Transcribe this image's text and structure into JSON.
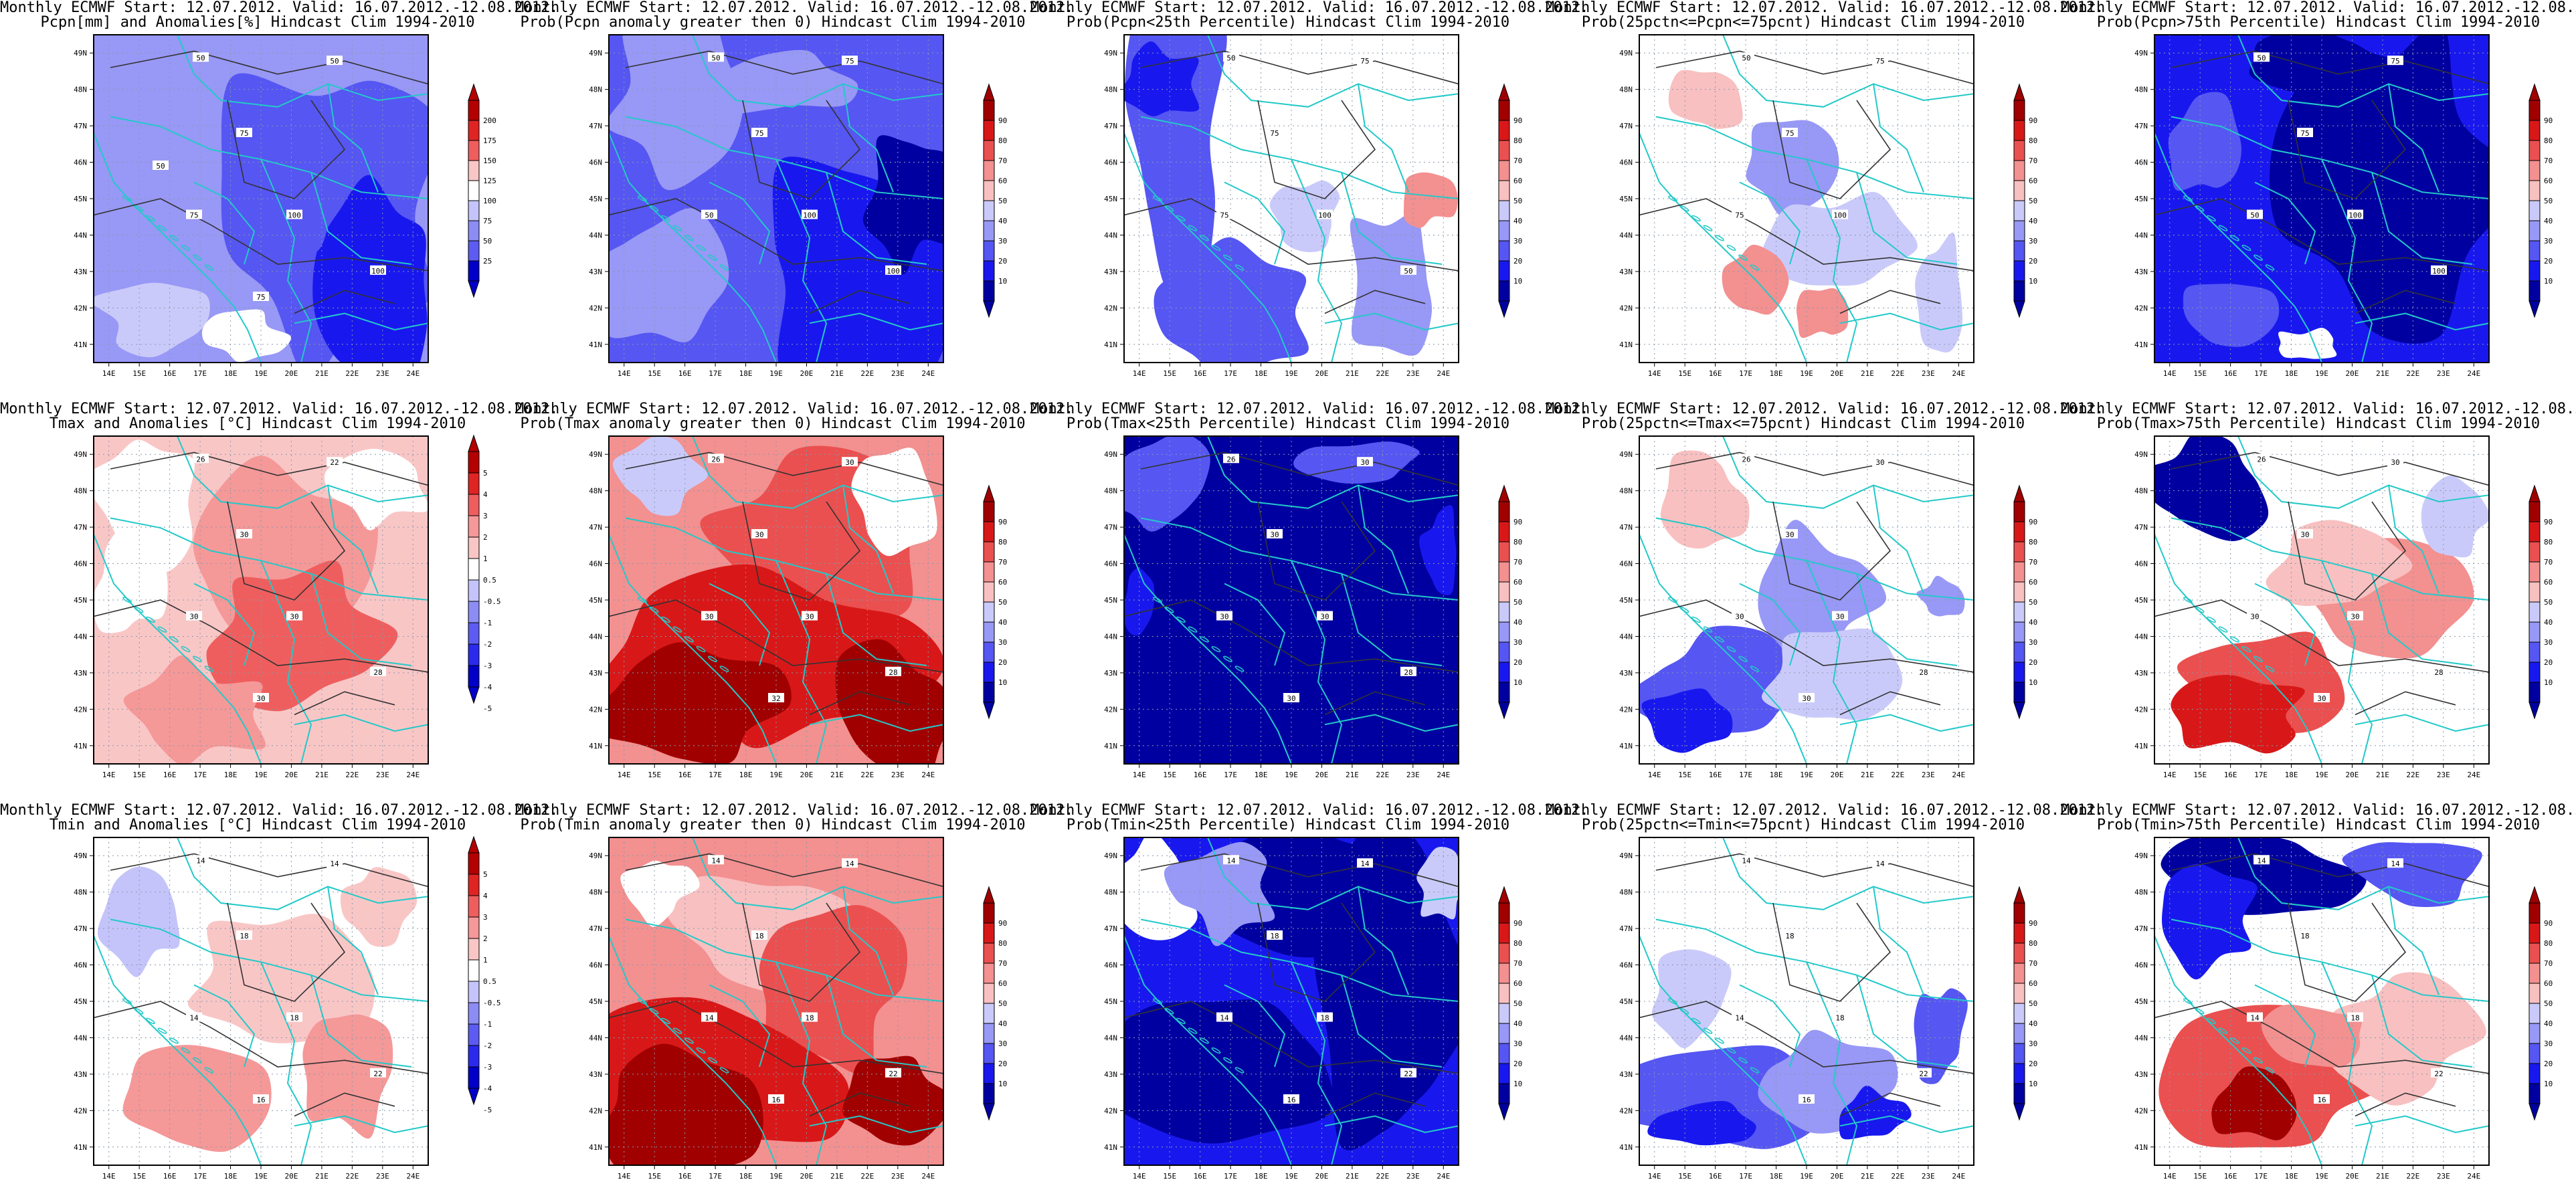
{
  "common": {
    "title_line1": "Monthly ECMWF Start: 12.07.2012. Valid: 16.07.2012.-12.08.2012.",
    "lon_ticks": [
      "14E",
      "15E",
      "16E",
      "17E",
      "18E",
      "19E",
      "20E",
      "21E",
      "22E",
      "23E",
      "24E"
    ],
    "lat_ticks": [
      "49N",
      "48N",
      "47N",
      "46N",
      "45N",
      "44N",
      "43N",
      "42N",
      "41N"
    ],
    "anomaly_colors": [
      "#0000c8",
      "#2a2aee",
      "#5c5cf2",
      "#8c8cf4",
      "#c4c4fa",
      "#ffffff",
      "#f9c6c6",
      "#f59898",
      "#ef5e5e",
      "#e02424",
      "#b40000"
    ],
    "prob_colors": [
      "#0000a0",
      "#1818ee",
      "#5656f2",
      "#9898f6",
      "#cacafa",
      "#ffffff",
      "#f8c0c0",
      "#f39090",
      "#ea5050",
      "#d81818",
      "#a00000"
    ],
    "coastline_color": "#23c9c9",
    "contour_color": "#333333"
  },
  "chart_data": [
    {
      "type": "map",
      "title": "Pcpn[mm] and Anomalies[%] Hindcast Clim 1994-2010",
      "colorbar_labels": [
        "200",
        "175",
        "150",
        "125",
        "100",
        "75",
        "50",
        "25"
      ],
      "contour_labels": [
        "50",
        "50",
        "75",
        "100",
        "75",
        "100",
        "75",
        "50"
      ],
      "dominant": "light-blue, blue in southeast"
    },
    {
      "type": "map",
      "title": "Prob(Pcpn anomaly greater then 0) Hindcast Clim 1994-2010",
      "colorbar_labels": [
        "90",
        "80",
        "70",
        "60",
        "50",
        "40",
        "30",
        "20",
        "10"
      ],
      "contour_labels": [
        "50",
        "75",
        "75",
        "100",
        "50",
        "100"
      ],
      "dominant": "blue"
    },
    {
      "type": "map",
      "title": "Prob(Pcpn<25th Percentile) Hindcast Clim 1994-2010",
      "colorbar_labels": [
        "90",
        "80",
        "70",
        "60",
        "50",
        "40",
        "30",
        "20",
        "10"
      ],
      "contour_labels": [
        "50",
        "75",
        "75",
        "100",
        "75",
        "50"
      ],
      "dominant": "white with blue patches"
    },
    {
      "type": "map",
      "title": "Prob(25pctn<=Pcpn<=75pcnt) Hindcast Clim 1994-2010",
      "colorbar_labels": [
        "90",
        "80",
        "70",
        "60",
        "50",
        "40",
        "30",
        "20",
        "10"
      ],
      "contour_labels": [
        "50",
        "75",
        "75",
        "100",
        "75"
      ],
      "dominant": "white with light blue and pink patches"
    },
    {
      "type": "map",
      "title": "Prob(Pcpn>75th Percentile) Hindcast Clim 1994-2010",
      "colorbar_labels": [
        "90",
        "80",
        "70",
        "60",
        "50",
        "40",
        "30",
        "20",
        "10"
      ],
      "contour_labels": [
        "50",
        "75",
        "75",
        "100",
        "50",
        "100"
      ],
      "dominant": "dark blue"
    },
    {
      "type": "map",
      "title": "Tmax and Anomalies [°C] Hindcast Clim 1994-2010",
      "colorbar_labels": [
        "5",
        "4",
        "3",
        "2",
        "1",
        "0.5",
        "-0.5",
        "-1",
        "-2",
        "-3",
        "-4",
        "-5"
      ],
      "contour_labels": [
        "26",
        "22",
        "30",
        "30",
        "30",
        "28",
        "30"
      ],
      "dominant": "pink and red"
    },
    {
      "type": "map",
      "title": "Prob(Tmax anomaly greater then 0) Hindcast Clim 1994-2010",
      "colorbar_labels": [
        "90",
        "80",
        "70",
        "60",
        "50",
        "40",
        "30",
        "20",
        "10"
      ],
      "contour_labels": [
        "26",
        "30",
        "30",
        "30",
        "30",
        "28",
        "32"
      ],
      "dominant": "red, dark red in south"
    },
    {
      "type": "map",
      "title": "Prob(Tmax<25th Percentile) Hindcast Clim 1994-2010",
      "colorbar_labels": [
        "90",
        "80",
        "70",
        "60",
        "50",
        "40",
        "30",
        "20",
        "10"
      ],
      "contour_labels": [
        "26",
        "30",
        "30",
        "30",
        "30",
        "28",
        "30"
      ],
      "dominant": "dark blue"
    },
    {
      "type": "map",
      "title": "Prob(25pctn<=Tmax<=75pcnt) Hindcast Clim 1994-2010",
      "colorbar_labels": [
        "90",
        "80",
        "70",
        "60",
        "50",
        "40",
        "30",
        "20",
        "10"
      ],
      "contour_labels": [
        "26",
        "30",
        "30",
        "30",
        "30",
        "28",
        "30"
      ],
      "dominant": "white and blue"
    },
    {
      "type": "map",
      "title": "Prob(Tmax>75th Percentile) Hindcast Clim 1994-2010",
      "colorbar_labels": [
        "90",
        "80",
        "70",
        "60",
        "50",
        "40",
        "30",
        "20",
        "10"
      ],
      "contour_labels": [
        "26",
        "30",
        "30",
        "30",
        "30",
        "28",
        "30"
      ],
      "dominant": "white and pink, red in south"
    },
    {
      "type": "map",
      "title": "Tmin and Anomalies [°C] Hindcast Clim 1994-2010",
      "colorbar_labels": [
        "5",
        "4",
        "3",
        "2",
        "1",
        "0.5",
        "-0.5",
        "-1",
        "-2",
        "-3",
        "-4",
        "-5"
      ],
      "contour_labels": [
        "14",
        "14",
        "18",
        "18",
        "14",
        "22",
        "16"
      ],
      "dominant": "white and pink"
    },
    {
      "type": "map",
      "title": "Prob(Tmin anomaly greater then 0) Hindcast Clim 1994-2010",
      "colorbar_labels": [
        "90",
        "80",
        "70",
        "60",
        "50",
        "40",
        "30",
        "20",
        "10"
      ],
      "contour_labels": [
        "14",
        "14",
        "18",
        "18",
        "14",
        "22",
        "16"
      ],
      "dominant": "red, dark red in southwest"
    },
    {
      "type": "map",
      "title": "Prob(Tmin<25th Percentile) Hindcast Clim 1994-2010",
      "colorbar_labels": [
        "90",
        "80",
        "70",
        "60",
        "50",
        "40",
        "30",
        "20",
        "10"
      ],
      "contour_labels": [
        "14",
        "14",
        "18",
        "18",
        "14",
        "22",
        "16"
      ],
      "dominant": "dark blue"
    },
    {
      "type": "map",
      "title": "Prob(25pctn<=Tmin<=75pcnt) Hindcast Clim 1994-2010",
      "colorbar_labels": [
        "90",
        "80",
        "70",
        "60",
        "50",
        "40",
        "30",
        "20",
        "10"
      ],
      "contour_labels": [
        "14",
        "14",
        "18",
        "18",
        "14",
        "22",
        "16"
      ],
      "dominant": "white with blue in south"
    },
    {
      "type": "map",
      "title": "Prob(Tmin>75th Percentile) Hindcast Clim 1994-2010",
      "colorbar_labels": [
        "90",
        "80",
        "70",
        "60",
        "50",
        "40",
        "30",
        "20",
        "10"
      ],
      "contour_labels": [
        "14",
        "14",
        "18",
        "18",
        "14",
        "22",
        "16"
      ],
      "dominant": "blue north, red south"
    }
  ]
}
